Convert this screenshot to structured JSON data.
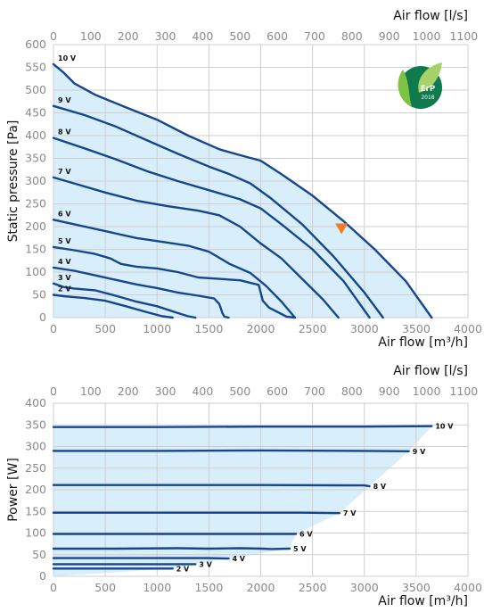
{
  "chart_data": [
    {
      "type": "line",
      "xlabel": "Air flow [m³/h]",
      "ylabel": "Static pressure [Pa]",
      "x2label": "Air flow [l/s]",
      "xlim": [
        0,
        4000
      ],
      "ylim": [
        0,
        600
      ],
      "x_ticks": [
        0,
        500,
        1000,
        1500,
        2000,
        2500,
        3000,
        3500,
        4000
      ],
      "y_ticks": [
        0,
        50,
        100,
        150,
        200,
        250,
        300,
        350,
        400,
        450,
        500,
        550,
        600
      ],
      "x2_ticks": [
        0,
        100,
        200,
        300,
        400,
        500,
        600,
        700,
        800,
        900,
        1000,
        1100
      ],
      "x2_max": 1111.1,
      "grid": true,
      "badge": {
        "text": "ErP",
        "year": "2018",
        "color": "#0e7a4e"
      },
      "marker": {
        "x": 2780,
        "y": 195,
        "color": "#f07c2a"
      },
      "fill_color": "#d8eefb",
      "line_color": "#16468f",
      "series": [
        {
          "name": "10 V",
          "points": [
            [
              0,
              557
            ],
            [
              100,
              538
            ],
            [
              200,
              515
            ],
            [
              400,
              490
            ],
            [
              700,
              462
            ],
            [
              1000,
              435
            ],
            [
              1300,
              400
            ],
            [
              1600,
              370
            ],
            [
              1800,
              357
            ],
            [
              2000,
              345
            ],
            [
              2200,
              315
            ],
            [
              2500,
              268
            ],
            [
              2800,
              212
            ],
            [
              3100,
              150
            ],
            [
              3400,
              80
            ],
            [
              3650,
              0
            ]
          ]
        },
        {
          "name": "9 V",
          "points": [
            [
              0,
              465
            ],
            [
              300,
              445
            ],
            [
              600,
              420
            ],
            [
              900,
              390
            ],
            [
              1200,
              360
            ],
            [
              1500,
              332
            ],
            [
              1700,
              315
            ],
            [
              1900,
              295
            ],
            [
              2100,
              262
            ],
            [
              2400,
              205
            ],
            [
              2700,
              135
            ],
            [
              3000,
              55
            ],
            [
              3180,
              0
            ]
          ]
        },
        {
          "name": "8 V",
          "points": [
            [
              0,
              395
            ],
            [
              300,
              372
            ],
            [
              600,
              348
            ],
            [
              900,
              322
            ],
            [
              1200,
              300
            ],
            [
              1500,
              280
            ],
            [
              1800,
              260
            ],
            [
              2000,
              240
            ],
            [
              2200,
              205
            ],
            [
              2500,
              150
            ],
            [
              2800,
              80
            ],
            [
              3050,
              0
            ]
          ]
        },
        {
          "name": "7 V",
          "points": [
            [
              0,
              308
            ],
            [
              200,
              295
            ],
            [
              500,
              275
            ],
            [
              800,
              257
            ],
            [
              1100,
              245
            ],
            [
              1400,
              235
            ],
            [
              1600,
              225
            ],
            [
              1800,
              200
            ],
            [
              2000,
              163
            ],
            [
              2200,
              130
            ],
            [
              2400,
              85
            ],
            [
              2600,
              40
            ],
            [
              2750,
              0
            ]
          ]
        },
        {
          "name": "6 V",
          "points": [
            [
              0,
              215
            ],
            [
              200,
              205
            ],
            [
              500,
              190
            ],
            [
              800,
              175
            ],
            [
              1100,
              165
            ],
            [
              1300,
              158
            ],
            [
              1500,
              145
            ],
            [
              1700,
              118
            ],
            [
              1900,
              98
            ],
            [
              2050,
              70
            ],
            [
              2200,
              35
            ],
            [
              2330,
              0
            ]
          ]
        },
        {
          "name": "5 V",
          "points": [
            [
              0,
              155
            ],
            [
              200,
              148
            ],
            [
              400,
              140
            ],
            [
              550,
              130
            ],
            [
              650,
              118
            ],
            [
              800,
              112
            ],
            [
              1000,
              108
            ],
            [
              1200,
              100
            ],
            [
              1400,
              88
            ],
            [
              1600,
              85
            ],
            [
              1800,
              82
            ],
            [
              1980,
              72
            ],
            [
              2000,
              55
            ],
            [
              2020,
              37
            ],
            [
              2080,
              22
            ],
            [
              2250,
              2
            ],
            [
              2330,
              0
            ]
          ]
        },
        {
          "name": "4 V",
          "points": [
            [
              0,
              110
            ],
            [
              200,
              103
            ],
            [
              400,
              93
            ],
            [
              600,
              83
            ],
            [
              800,
              73
            ],
            [
              1000,
              65
            ],
            [
              1200,
              55
            ],
            [
              1400,
              48
            ],
            [
              1550,
              42
            ],
            [
              1600,
              30
            ],
            [
              1630,
              10
            ],
            [
              1650,
              2
            ],
            [
              1690,
              0
            ]
          ]
        },
        {
          "name": "3 V",
          "points": [
            [
              0,
              75
            ],
            [
              100,
              67
            ],
            [
              200,
              64
            ],
            [
              400,
              60
            ],
            [
              600,
              48
            ],
            [
              800,
              35
            ],
            [
              1000,
              25
            ],
            [
              1200,
              10
            ],
            [
              1300,
              3
            ],
            [
              1370,
              0
            ]
          ]
        },
        {
          "name": "2 V",
          "points": [
            [
              0,
              50
            ],
            [
              100,
              47
            ],
            [
              200,
              45
            ],
            [
              300,
              43
            ],
            [
              500,
              37
            ],
            [
              700,
              25
            ],
            [
              900,
              12
            ],
            [
              1050,
              3
            ],
            [
              1150,
              0
            ]
          ]
        }
      ]
    },
    {
      "type": "line",
      "xlabel": "Air flow [m³/h]",
      "ylabel": "Power [W]",
      "x2label": "Air flow [l/s]",
      "xlim": [
        0,
        4000
      ],
      "ylim": [
        0,
        400
      ],
      "x_ticks": [
        0,
        500,
        1000,
        1500,
        2000,
        2500,
        3000,
        3500,
        4000
      ],
      "y_ticks": [
        0,
        50,
        100,
        150,
        200,
        250,
        300,
        350,
        400
      ],
      "x2_ticks": [
        0,
        100,
        200,
        300,
        400,
        500,
        600,
        700,
        800,
        900,
        1000,
        1100
      ],
      "x2_max": 1111.1,
      "grid": true,
      "fill_color": "#d8eefb",
      "line_color": "#16468f",
      "series": [
        {
          "name": "10 V",
          "points": [
            [
              0,
              345
            ],
            [
              1000,
              345
            ],
            [
              2000,
              346
            ],
            [
              3000,
              346
            ],
            [
              3650,
              347
            ]
          ]
        },
        {
          "name": "9 V",
          "points": [
            [
              0,
              290
            ],
            [
              1000,
              290
            ],
            [
              2000,
              291
            ],
            [
              3000,
              290
            ],
            [
              3430,
              289
            ]
          ]
        },
        {
          "name": "8 V",
          "points": [
            [
              0,
              211
            ],
            [
              1000,
              211
            ],
            [
              2000,
              211
            ],
            [
              3000,
              210
            ],
            [
              3050,
              208
            ]
          ]
        },
        {
          "name": "7 V",
          "points": [
            [
              0,
              147
            ],
            [
              600,
              147
            ],
            [
              1200,
              147
            ],
            [
              1800,
              147
            ],
            [
              2400,
              147
            ],
            [
              2760,
              146
            ]
          ]
        },
        {
          "name": "6 V",
          "points": [
            [
              0,
              98
            ],
            [
              600,
              98
            ],
            [
              1200,
              98
            ],
            [
              1800,
              98
            ],
            [
              2340,
              98
            ]
          ]
        },
        {
          "name": "5 V",
          "points": [
            [
              0,
              64
            ],
            [
              600,
              64
            ],
            [
              1200,
              65
            ],
            [
              1500,
              64
            ],
            [
              1800,
              65
            ],
            [
              2020,
              64
            ],
            [
              2100,
              63
            ],
            [
              2280,
              64
            ]
          ]
        },
        {
          "name": "4 V",
          "points": [
            [
              0,
              42
            ],
            [
              500,
              42
            ],
            [
              1000,
              42
            ],
            [
              1500,
              42
            ],
            [
              1690,
              41
            ]
          ]
        },
        {
          "name": "3 V",
          "points": [
            [
              0,
              28
            ],
            [
              500,
              28
            ],
            [
              1000,
              28
            ],
            [
              1370,
              28
            ]
          ]
        },
        {
          "name": "2 V",
          "points": [
            [
              0,
              18
            ],
            [
              500,
              18
            ],
            [
              1000,
              18
            ],
            [
              1150,
              18
            ]
          ]
        }
      ]
    }
  ]
}
